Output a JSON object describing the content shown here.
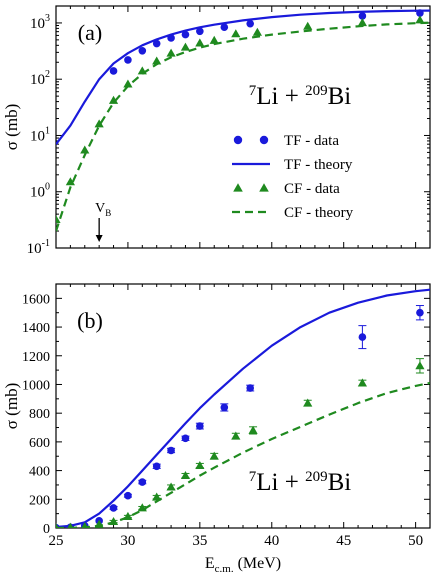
{
  "chart_data": [
    {
      "panel": "(a)",
      "type": "scatter",
      "reaction": {
        "base": "Li",
        "mass_a": "7",
        "mass_b": "209",
        "target": "Bi",
        "plus": "+"
      },
      "ylabel": "σ (mb)",
      "yscale": "log",
      "xlim": [
        25,
        51
      ],
      "ylim": [
        0.1,
        2000
      ],
      "yticks": [
        0.1,
        1,
        10,
        100,
        1000
      ],
      "annotation": {
        "text": "V",
        "sub": "B",
        "x": 28.0
      },
      "legend_position": "right-middle",
      "legend": [
        {
          "label": "TF - data",
          "marker": "circle",
          "color": "#1a1adb"
        },
        {
          "label": "TF - theory",
          "marker": "solid-line",
          "color": "#1a1adb"
        },
        {
          "label": "CF - data",
          "marker": "triangle",
          "color": "#1f8a1f"
        },
        {
          "label": "CF - theory",
          "marker": "dashed-line",
          "color": "#1f8a1f"
        }
      ],
      "series": [
        {
          "name": "TF - data",
          "style": "points",
          "marker": "circle",
          "color": "#1a1adb",
          "x": [
            29.0,
            30.0,
            31.0,
            32.0,
            33.0,
            34.0,
            35.0,
            36.7,
            38.5,
            46.3,
            50.3
          ],
          "y": [
            140,
            220,
            320,
            430,
            540,
            620,
            710,
            840,
            970,
            1330,
            1500
          ]
        },
        {
          "name": "TF - theory",
          "style": "solid",
          "color": "#1a1adb",
          "x": [
            25.0,
            26.0,
            27.0,
            28.0,
            29.0,
            30.0,
            31.0,
            32.0,
            33.0,
            34.0,
            35.0,
            36.0,
            38.0,
            40.0,
            42.0,
            44.0,
            46.0,
            48.0,
            50.0,
            51.0
          ],
          "y": [
            7,
            15,
            40,
            100,
            190,
            290,
            400,
            510,
            620,
            730,
            835,
            930,
            1110,
            1270,
            1400,
            1500,
            1570,
            1620,
            1650,
            1660
          ]
        },
        {
          "name": "CF - data",
          "style": "points",
          "marker": "triangle",
          "color": "#1f8a1f",
          "x": [
            25.0,
            26.0,
            27.0,
            28.0,
            29.0,
            30.0,
            31.0,
            32.0,
            33.0,
            34.0,
            35.0,
            36.0,
            37.5,
            39.0,
            42.5,
            46.3,
            50.3
          ],
          "y": [
            0.32,
            1.5,
            5.5,
            16,
            42,
            82,
            140,
            210,
            290,
            370,
            440,
            490,
            640,
            680,
            870,
            1010,
            1130
          ]
        },
        {
          "name": "CF - theory",
          "style": "dashed",
          "color": "#1f8a1f",
          "x": [
            25.0,
            26.0,
            27.0,
            28.0,
            29.0,
            30.0,
            31.0,
            32.0,
            33.0,
            34.0,
            35.0,
            36.0,
            38.0,
            40.0,
            42.0,
            44.0,
            46.0,
            48.0,
            50.0,
            51.0
          ],
          "y": [
            0.2,
            1.2,
            4.5,
            15,
            38,
            75,
            125,
            185,
            245,
            305,
            365,
            420,
            525,
            620,
            705,
            790,
            870,
            940,
            990,
            1010
          ]
        }
      ]
    },
    {
      "panel": "(b)",
      "type": "scatter",
      "reaction": {
        "base": "Li",
        "mass_a": "7",
        "mass_b": "209",
        "target": "Bi",
        "plus": "+"
      },
      "ylabel": "σ (mb)",
      "xlabel": "E",
      "xlabel_sub": "c.m.",
      "xlabel_unit": " (MeV)",
      "yscale": "linear",
      "xlim": [
        25,
        51
      ],
      "ylim": [
        0,
        1700
      ],
      "xticks": [
        25,
        30,
        35,
        40,
        45,
        50
      ],
      "yticks": [
        0,
        200,
        400,
        600,
        800,
        1000,
        1200,
        1400,
        1600
      ],
      "series": [
        {
          "name": "TF - data",
          "style": "points",
          "marker": "circle",
          "color": "#1a1adb",
          "x": [
            25.0,
            26.0,
            27.0,
            28.0,
            29.0,
            30.0,
            31.0,
            32.0,
            33.0,
            34.0,
            35.0,
            36.7,
            38.5,
            46.3,
            50.3
          ],
          "y": [
            2,
            5,
            15,
            50,
            140,
            225,
            320,
            430,
            540,
            625,
            710,
            840,
            975,
            1330,
            1500
          ],
          "err": [
            0,
            0,
            0,
            0,
            10,
            10,
            12,
            15,
            15,
            15,
            20,
            25,
            20,
            80,
            50
          ]
        },
        {
          "name": "TF - theory",
          "style": "solid",
          "color": "#1a1adb",
          "x": [
            25.0,
            26.0,
            27.0,
            28.0,
            29.0,
            30.0,
            31.0,
            32.0,
            33.0,
            34.0,
            35.0,
            36.0,
            38.0,
            40.0,
            42.0,
            44.0,
            46.0,
            48.0,
            50.0,
            51.0
          ],
          "y": [
            7,
            15,
            40,
            100,
            190,
            290,
            400,
            510,
            620,
            730,
            835,
            930,
            1110,
            1270,
            1400,
            1500,
            1570,
            1620,
            1650,
            1660
          ]
        },
        {
          "name": "CF - data",
          "style": "points",
          "marker": "triangle",
          "color": "#1f8a1f",
          "x": [
            25.0,
            26.0,
            27.0,
            28.0,
            29.0,
            30.0,
            31.0,
            32.0,
            33.0,
            34.0,
            35.0,
            36.0,
            37.5,
            38.7,
            42.5,
            46.3,
            50.3
          ],
          "y": [
            2,
            5,
            10,
            25,
            45,
            80,
            140,
            215,
            285,
            365,
            435,
            500,
            640,
            680,
            870,
            1010,
            1130
          ],
          "err": [
            0,
            0,
            0,
            0,
            8,
            8,
            10,
            12,
            15,
            15,
            15,
            20,
            20,
            25,
            20,
            20,
            50
          ]
        },
        {
          "name": "CF - theory",
          "style": "dashed",
          "color": "#1f8a1f",
          "x": [
            25.0,
            26.0,
            27.0,
            28.0,
            29.0,
            30.0,
            31.0,
            32.0,
            33.0,
            34.0,
            35.0,
            36.0,
            38.0,
            40.0,
            42.0,
            44.0,
            46.0,
            48.0,
            50.0,
            51.0
          ],
          "y": [
            0.2,
            1.2,
            4.5,
            15,
            38,
            75,
            125,
            185,
            245,
            305,
            365,
            420,
            525,
            620,
            705,
            790,
            870,
            940,
            990,
            1010
          ]
        }
      ]
    }
  ]
}
